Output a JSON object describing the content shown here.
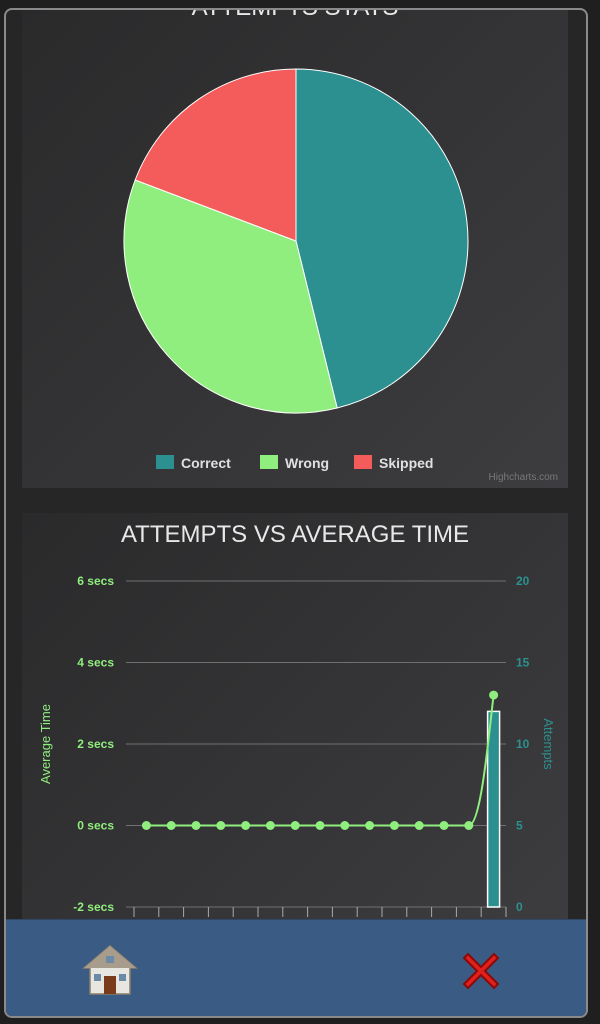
{
  "pie_chart": {
    "title": "ATTEMPTS STATS",
    "credits": "Highcharts.com"
  },
  "combo_chart": {
    "title": "ATTEMPTS VS AVERAGE TIME"
  },
  "footer": {
    "home_icon": "house-icon",
    "close_icon": "red-x-icon"
  },
  "chart_data": [
    {
      "type": "pie",
      "title": "ATTEMPTS STATS",
      "legend_position": "bottom",
      "slices": [
        {
          "name": "Correct",
          "value": 12,
          "color": "#2b908f"
        },
        {
          "name": "Wrong",
          "value": 9,
          "color": "#90ee7e"
        },
        {
          "name": "Skipped",
          "value": 5,
          "color": "#f45b5b"
        }
      ]
    },
    {
      "type": "bar+line",
      "title": "ATTEMPTS VS AVERAGE TIME",
      "categories": [
        "",
        "",
        "",
        "",
        "",
        "",
        "",
        "",
        "",
        "",
        "",
        "",
        "",
        "",
        ""
      ],
      "y_left": {
        "label": "Average Time",
        "ticks": [
          "-2 secs",
          "0 secs",
          "2 secs",
          "4 secs",
          "6 secs"
        ],
        "range": [
          -2,
          6
        ],
        "color": "#90ee7e"
      },
      "y_right": {
        "label": "Attempts",
        "ticks": [
          "0",
          "5",
          "10",
          "15",
          "20"
        ],
        "range": [
          0,
          20
        ],
        "color": "#2b908f"
      },
      "series": [
        {
          "name": "Attempts",
          "type": "column",
          "axis": "right",
          "values": [
            0,
            0,
            0,
            0,
            0,
            0,
            0,
            0,
            0,
            0,
            0,
            0,
            0,
            0,
            12
          ]
        },
        {
          "name": "Average Time",
          "type": "spline",
          "axis": "left",
          "values": [
            0,
            0,
            0,
            0,
            0,
            0,
            0,
            0,
            0,
            0,
            0,
            0,
            0,
            0,
            3.2
          ]
        }
      ],
      "grid": true
    }
  ]
}
